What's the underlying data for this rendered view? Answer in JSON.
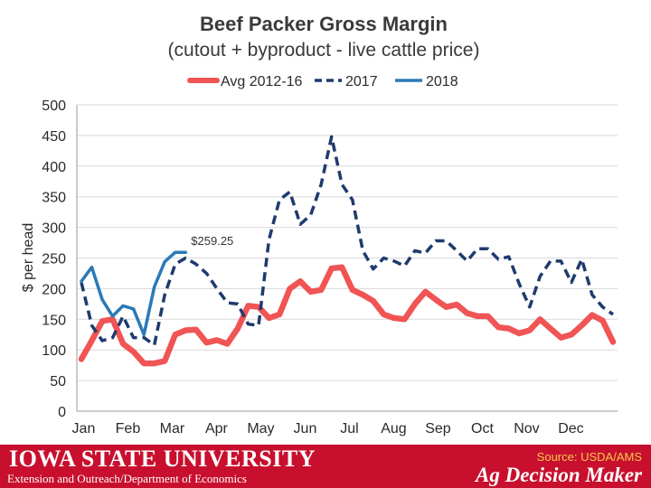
{
  "chart_data": {
    "type": "line",
    "title": "Beef Packer Gross Margin",
    "subtitle": "(cutout + byproduct - live cattle price)",
    "xlabel": "",
    "ylabel": "$ per head",
    "ylim": [
      0,
      500
    ],
    "yticks": [
      "0",
      "50",
      "100",
      "150",
      "200",
      "250",
      "300",
      "350",
      "400",
      "450",
      "500"
    ],
    "month_labels": [
      "Jan",
      "Feb",
      "Mar",
      "Apr",
      "May",
      "Jun",
      "Jul",
      "Aug",
      "Sep",
      "Oct",
      "Nov",
      "Dec"
    ],
    "x_unit": "week",
    "xlim": [
      1,
      52
    ],
    "grid": true,
    "legend_position": "top",
    "annotation": {
      "text": "$259.25",
      "x": 11,
      "y": 259.25
    },
    "series": [
      {
        "name": "Avg 2012-16",
        "color": "#f05454",
        "style": "solid-thick",
        "x": [
          1,
          2,
          3,
          4,
          5,
          6,
          7,
          8,
          9,
          10,
          11,
          12,
          13,
          14,
          15,
          16,
          17,
          18,
          19,
          20,
          21,
          22,
          23,
          24,
          25,
          26,
          27,
          28,
          29,
          30,
          31,
          32,
          33,
          34,
          35,
          36,
          37,
          38,
          39,
          40,
          41,
          42,
          43,
          44,
          45,
          46,
          47,
          48,
          49,
          50,
          51,
          52
        ],
        "values": [
          85,
          115,
          147,
          150,
          110,
          97,
          78,
          78,
          82,
          125,
          132,
          133,
          112,
          116,
          110,
          135,
          172,
          170,
          152,
          158,
          200,
          212,
          195,
          198,
          233,
          235,
          198,
          190,
          180,
          158,
          152,
          150,
          175,
          195,
          182,
          170,
          174,
          160,
          155,
          155,
          137,
          135,
          127,
          132,
          150,
          135,
          120,
          125,
          140,
          157,
          148,
          113
        ]
      },
      {
        "name": "2017",
        "color": "#1f3a6e",
        "style": "dashed",
        "x": [
          1,
          2,
          3,
          4,
          5,
          6,
          7,
          8,
          9,
          10,
          11,
          12,
          13,
          14,
          15,
          16,
          17,
          18,
          19,
          20,
          21,
          22,
          23,
          24,
          25,
          26,
          27,
          28,
          29,
          30,
          31,
          32,
          33,
          34,
          35,
          36,
          37,
          38,
          39,
          40,
          41,
          42,
          43,
          44,
          45,
          46,
          47,
          48,
          49,
          50,
          51,
          52
        ],
        "values": [
          210,
          140,
          115,
          120,
          155,
          120,
          120,
          108,
          190,
          240,
          250,
          240,
          225,
          200,
          177,
          175,
          142,
          140,
          280,
          345,
          358,
          305,
          320,
          370,
          448,
          370,
          345,
          262,
          232,
          250,
          245,
          237,
          262,
          258,
          278,
          278,
          262,
          245,
          265,
          265,
          248,
          252,
          208,
          170,
          220,
          245,
          245,
          210,
          248,
          190,
          170,
          158
        ]
      },
      {
        "name": "2018",
        "color": "#2a7ab8",
        "style": "solid",
        "x": [
          1,
          2,
          3,
          4,
          5,
          6,
          7,
          8,
          9,
          10,
          11
        ],
        "values": [
          212,
          235,
          182,
          155,
          172,
          167,
          125,
          203,
          244,
          259.25,
          259.25
        ]
      }
    ]
  },
  "footer": {
    "university": "IOWA STATE UNIVERSITY",
    "extension": "Extension and Outreach/Department of Economics",
    "source": "Source: USDA/AMS",
    "brand": "Ag Decision Maker"
  }
}
